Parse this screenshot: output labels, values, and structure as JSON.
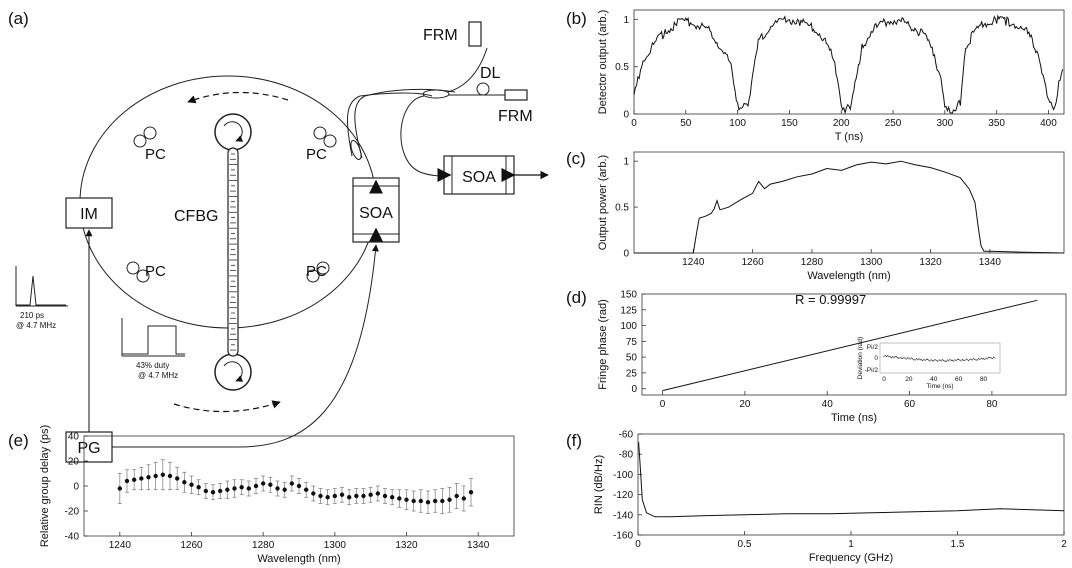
{
  "panel_labels": [
    "(a)",
    "(b)",
    "(c)",
    "(d)",
    "(e)",
    "(f)"
  ],
  "schematic": {
    "components": {
      "frm_top": "FRM",
      "frm_right": "FRM",
      "dl": "DL",
      "pc": "PC",
      "im": "IM",
      "cfbg": "CFBG",
      "soa_loop": "SOA",
      "soa_out": "SOA",
      "pg": "PG"
    },
    "pulse_label": [
      "210 ps",
      "@ 4.7 MHz"
    ],
    "gate_label": [
      "43% duty",
      "@ 4.7 MHz"
    ]
  },
  "chart_data": [
    {
      "panel": "(b)",
      "type": "line",
      "xlabel": "T (ns)",
      "ylabel": "Detector output (arb.)",
      "xlim": [
        0,
        415
      ],
      "ylim": [
        0,
        1.1
      ],
      "xticks": [
        0,
        50,
        100,
        150,
        200,
        250,
        300,
        350,
        400
      ],
      "yticks": [
        0,
        0.5,
        1
      ],
      "x": [
        0,
        5,
        10,
        20,
        30,
        40,
        50,
        60,
        70,
        80,
        90,
        95,
        100,
        105,
        110,
        120,
        130,
        140,
        150,
        160,
        170,
        180,
        190,
        195,
        200,
        205,
        210,
        220,
        230,
        240,
        250,
        260,
        270,
        280,
        290,
        295,
        300,
        305,
        315,
        320,
        330,
        340,
        350,
        360,
        370,
        380,
        390,
        395,
        400,
        405,
        410,
        415
      ],
      "y": [
        0.18,
        0.4,
        0.58,
        0.75,
        0.87,
        0.95,
        0.98,
        0.95,
        0.9,
        0.78,
        0.6,
        0.45,
        0.1,
        0.05,
        0.1,
        0.75,
        0.92,
        0.98,
        1.0,
        0.98,
        0.93,
        0.85,
        0.65,
        0.45,
        0.1,
        0.05,
        0.08,
        0.72,
        0.88,
        0.96,
        0.99,
        0.97,
        0.92,
        0.83,
        0.62,
        0.4,
        0.12,
        0.05,
        0.1,
        0.72,
        0.88,
        0.97,
        1.0,
        0.98,
        0.94,
        0.85,
        0.65,
        0.4,
        0.12,
        0.05,
        0.3,
        0.6
      ]
    },
    {
      "panel": "(c)",
      "type": "line",
      "xlabel": "Wavelength (nm)",
      "ylabel": "Output power (arb.)",
      "xlim": [
        1220,
        1365
      ],
      "ylim": [
        0,
        1.1
      ],
      "xticks": [
        1240,
        1260,
        1280,
        1300,
        1320,
        1340
      ],
      "yticks": [
        0,
        0.5,
        1
      ],
      "x": [
        1220,
        1240,
        1241,
        1242,
        1244,
        1246,
        1247,
        1248,
        1249,
        1252,
        1256,
        1260,
        1262,
        1264,
        1266,
        1270,
        1275,
        1280,
        1285,
        1290,
        1295,
        1300,
        1305,
        1310,
        1315,
        1320,
        1325,
        1330,
        1333,
        1335,
        1336,
        1337,
        1338,
        1340,
        1350,
        1365
      ],
      "y": [
        0,
        0,
        0.2,
        0.38,
        0.4,
        0.43,
        0.48,
        0.57,
        0.47,
        0.5,
        0.58,
        0.65,
        0.78,
        0.7,
        0.75,
        0.78,
        0.83,
        0.86,
        0.92,
        0.9,
        0.96,
        0.99,
        0.97,
        1.0,
        0.96,
        0.93,
        0.88,
        0.82,
        0.7,
        0.55,
        0.3,
        0.08,
        0.02,
        0.02,
        0.01,
        0
      ]
    },
    {
      "panel": "(d)",
      "type": "line",
      "xlabel": "Time (ns)",
      "ylabel": "Fringe phase (rad)",
      "xlim": [
        -5,
        98
      ],
      "ylim": [
        -10,
        150
      ],
      "xticks": [
        0,
        20,
        40,
        60,
        80
      ],
      "yticks": [
        0,
        25,
        50,
        75,
        100,
        125,
        150
      ],
      "x": [
        0,
        91
      ],
      "y": [
        -3,
        140
      ],
      "annotation": "R = 0.99997",
      "inset": {
        "xlabel": "Time (ns)",
        "ylabel": "Deviation (rad)",
        "xticks": [
          0,
          20,
          40,
          60,
          80
        ],
        "yticks": [
          "-Pi/2",
          "0",
          "Pi/2"
        ],
        "x": [
          0,
          5,
          10,
          15,
          20,
          25,
          30,
          35,
          40,
          45,
          50,
          55,
          60,
          65,
          70,
          75,
          80,
          85,
          90
        ],
        "y": [
          0.25,
          0.12,
          0.05,
          0.0,
          -0.05,
          -0.12,
          -0.18,
          -0.22,
          -0.25,
          -0.26,
          -0.26,
          -0.25,
          -0.22,
          -0.2,
          -0.17,
          -0.12,
          -0.08,
          -0.02,
          0.08
        ]
      }
    },
    {
      "panel": "(e)",
      "type": "scatter",
      "xlabel": "Wavelength (nm)",
      "ylabel": "Relative group delay (ps)",
      "xlim": [
        1230,
        1350
      ],
      "ylim": [
        -40,
        40
      ],
      "xticks": [
        1240,
        1260,
        1280,
        1300,
        1320,
        1340
      ],
      "yticks": [
        -40,
        -20,
        0,
        20,
        40
      ],
      "x": [
        1240,
        1242,
        1244,
        1246,
        1248,
        1250,
        1252,
        1254,
        1256,
        1258,
        1260,
        1262,
        1264,
        1266,
        1268,
        1270,
        1272,
        1274,
        1276,
        1278,
        1280,
        1282,
        1284,
        1286,
        1288,
        1290,
        1292,
        1294,
        1296,
        1298,
        1300,
        1302,
        1304,
        1306,
        1308,
        1310,
        1312,
        1314,
        1316,
        1318,
        1320,
        1322,
        1324,
        1326,
        1328,
        1330,
        1332,
        1334,
        1336,
        1338
      ],
      "y": [
        -2,
        4,
        5,
        6,
        7,
        8,
        9,
        8,
        6,
        3,
        1,
        -1,
        -4,
        -5,
        -4,
        -3,
        -2,
        -1,
        -2,
        0,
        2,
        1,
        -2,
        -3,
        2,
        0,
        -3,
        -6,
        -8,
        -9,
        -8,
        -7,
        -9,
        -8,
        -8,
        -7,
        -6,
        -8,
        -9,
        -10,
        -11,
        -12,
        -12,
        -13,
        -12,
        -12,
        -11,
        -8,
        -10,
        -5
      ],
      "err": [
        12,
        9,
        8,
        9,
        10,
        11,
        12,
        11,
        9,
        8,
        7,
        6,
        6,
        6,
        6,
        7,
        7,
        6,
        6,
        6,
        6,
        6,
        6,
        6,
        6,
        6,
        6,
        6,
        6,
        6,
        6,
        6,
        6,
        6,
        6,
        6,
        6,
        6,
        6,
        7,
        8,
        8,
        9,
        9,
        9,
        10,
        10,
        10,
        10,
        11
      ]
    },
    {
      "panel": "(f)",
      "type": "line",
      "xlabel": "Frequency (GHz)",
      "ylabel": "RIN (dB/Hz)",
      "xlim": [
        0,
        2
      ],
      "ylim": [
        -160,
        -60
      ],
      "xticks": [
        0,
        0.5,
        1,
        1.5,
        2
      ],
      "xticklabels": [
        "0",
        "0.5",
        "1",
        "1.5",
        "2"
      ],
      "yticks": [
        -160,
        -140,
        -120,
        -100,
        -80,
        -60
      ],
      "x": [
        0.003,
        0.01,
        0.02,
        0.04,
        0.08,
        0.15,
        0.3,
        0.5,
        0.7,
        0.9,
        1.1,
        1.3,
        1.5,
        1.7,
        1.85,
        2.0
      ],
      "y": [
        -68,
        -90,
        -125,
        -138,
        -142,
        -142,
        -141,
        -140,
        -139,
        -139,
        -138,
        -137,
        -136,
        -134,
        -135,
        -136
      ]
    }
  ]
}
